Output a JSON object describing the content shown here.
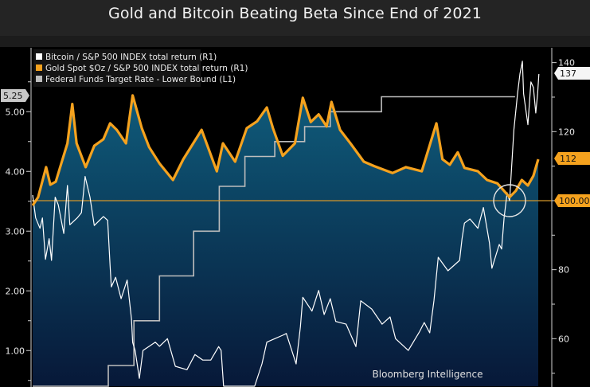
{
  "chart_data": {
    "type": "line",
    "title": "Gold and Bitcoin Beating Beta Since End of 2021",
    "source": "Bloomberg Intelligence",
    "legend_position": "top-left",
    "grid": false,
    "left_axis": {
      "name": "L1",
      "ylim": [
        0.39,
        6.07
      ],
      "ticks": [
        "1.00",
        "2.00",
        "3.00",
        "4.00",
        "5.00"
      ],
      "last_value_tag": "5.25"
    },
    "right_axis": {
      "name": "R1",
      "ylim": [
        46,
        144.3
      ],
      "ticks": [
        "60",
        "80",
        "120",
        "140"
      ],
      "reference_line": 100,
      "reference_tag": "100.00"
    },
    "colors": {
      "bitcoin": "#ffffff",
      "gold": "#f5a21e",
      "fed": "#bdbdbd",
      "fill_top": "#0f5d7c",
      "fill_bottom": "#071838",
      "reference": "#d4962a"
    },
    "series": [
      {
        "name": "Bitcoin / S&P 500 INDEX total return (R1)",
        "axis": "R1",
        "last_value_tag": "137",
        "points": [
          [
            "2022-01-01",
            101.6
          ],
          [
            "2022-01-06",
            95
          ],
          [
            "2022-01-13",
            92
          ],
          [
            "2022-01-17",
            95
          ],
          [
            "2022-01-22",
            83
          ],
          [
            "2022-01-28",
            89
          ],
          [
            "2022-02-01",
            82.7
          ],
          [
            "2022-02-07",
            101
          ],
          [
            "2022-02-12",
            98.8
          ],
          [
            "2022-02-21",
            90.5
          ],
          [
            "2022-02-27",
            104.4
          ],
          [
            "2022-03-03",
            93
          ],
          [
            "2022-03-15",
            95
          ],
          [
            "2022-03-22",
            96.5
          ],
          [
            "2022-03-28",
            107
          ],
          [
            "2022-04-05",
            101
          ],
          [
            "2022-04-12",
            92.8
          ],
          [
            "2022-04-27",
            95.4
          ],
          [
            "2022-05-04",
            94.3
          ],
          [
            "2022-05-08",
            81
          ],
          [
            "2022-05-10",
            75
          ],
          [
            "2022-05-17",
            77.8
          ],
          [
            "2022-05-26",
            71.6
          ],
          [
            "2022-06-05",
            77
          ],
          [
            "2022-06-12",
            65.8
          ],
          [
            "2022-06-14",
            58.9
          ],
          [
            "2022-06-18",
            56.6
          ],
          [
            "2022-06-25",
            48.5
          ],
          [
            "2022-07-01",
            56.6
          ],
          [
            "2022-07-21",
            59
          ],
          [
            "2022-07-28",
            57.8
          ],
          [
            "2022-08-10",
            60
          ],
          [
            "2022-08-23",
            52
          ],
          [
            "2022-09-11",
            51
          ],
          [
            "2022-09-24",
            55.4
          ],
          [
            "2022-10-07",
            53.8
          ],
          [
            "2022-10-20",
            53.8
          ],
          [
            "2022-11-02",
            57.7
          ],
          [
            "2022-11-06",
            56.6
          ],
          [
            "2022-11-10",
            46
          ],
          [
            "2022-12-05",
            43
          ],
          [
            "2022-12-31",
            42
          ],
          [
            "2023-01-12",
            52.7
          ],
          [
            "2023-01-20",
            59
          ],
          [
            "2023-02-02",
            60
          ],
          [
            "2023-02-15",
            61
          ],
          [
            "2023-02-21",
            61.5
          ],
          [
            "2023-03-09",
            52.7
          ],
          [
            "2023-03-16",
            63.5
          ],
          [
            "2023-03-20",
            72
          ],
          [
            "2023-04-04",
            68
          ],
          [
            "2023-04-15",
            74
          ],
          [
            "2023-04-24",
            67
          ],
          [
            "2023-05-04",
            71.6
          ],
          [
            "2023-05-13",
            65
          ],
          [
            "2023-05-30",
            64.2
          ],
          [
            "2023-06-15",
            57.7
          ],
          [
            "2023-06-23",
            71
          ],
          [
            "2023-07-11",
            68.6
          ],
          [
            "2023-07-28",
            64.2
          ],
          [
            "2023-08-10",
            66.3
          ],
          [
            "2023-08-19",
            60
          ],
          [
            "2023-09-09",
            56.6
          ],
          [
            "2023-09-27",
            61.9
          ],
          [
            "2023-10-05",
            64.7
          ],
          [
            "2023-10-14",
            61.7
          ],
          [
            "2023-10-21",
            71
          ],
          [
            "2023-10-28",
            83.6
          ],
          [
            "2023-11-13",
            79.7
          ],
          [
            "2023-12-02",
            82.7
          ],
          [
            "2023-12-06",
            89
          ],
          [
            "2023-12-10",
            93.5
          ],
          [
            "2023-12-19",
            94.7
          ],
          [
            "2024-01-01",
            92
          ],
          [
            "2024-01-10",
            98
          ],
          [
            "2024-01-20",
            87.8
          ],
          [
            "2024-01-24",
            80.4
          ],
          [
            "2024-02-05",
            87.3
          ],
          [
            "2024-02-09",
            86
          ],
          [
            "2024-02-13",
            95
          ],
          [
            "2024-02-18",
            102.3
          ],
          [
            "2024-02-22",
            100
          ],
          [
            "2024-02-29",
            120.5
          ],
          [
            "2024-03-06",
            131
          ],
          [
            "2024-03-10",
            136.7
          ],
          [
            "2024-03-14",
            140.4
          ],
          [
            "2024-03-16",
            131
          ],
          [
            "2024-03-23",
            122
          ],
          [
            "2024-03-28",
            134.4
          ],
          [
            "2024-04-01",
            132.8
          ],
          [
            "2024-04-05",
            125.4
          ],
          [
            "2024-04-08",
            131
          ],
          [
            "2024-04-10",
            136.7
          ]
        ]
      },
      {
        "name": "Gold Spot $Oz / S&P 500 INDEX total return (R1)",
        "axis": "R1",
        "last_value_tag": "112",
        "points": [
          [
            "2022-01-01",
            98.6
          ],
          [
            "2022-01-10",
            101
          ],
          [
            "2022-01-23",
            109.7
          ],
          [
            "2022-01-30",
            104.6
          ],
          [
            "2022-02-08",
            105.5
          ],
          [
            "2022-02-17",
            110.8
          ],
          [
            "2022-02-27",
            116.6
          ],
          [
            "2022-03-07",
            128
          ],
          [
            "2022-03-14",
            116.6
          ],
          [
            "2022-03-29",
            109.7
          ],
          [
            "2022-04-12",
            115.9
          ],
          [
            "2022-04-27",
            117.8
          ],
          [
            "2022-05-08",
            122.4
          ],
          [
            "2022-05-19",
            120.5
          ],
          [
            "2022-06-03",
            116.6
          ],
          [
            "2022-06-14",
            130.5
          ],
          [
            "2022-06-29",
            121
          ],
          [
            "2022-07-11",
            115.5
          ],
          [
            "2022-07-28",
            110.8
          ],
          [
            "2022-08-19",
            106
          ],
          [
            "2022-09-05",
            112
          ],
          [
            "2022-10-05",
            120.5
          ],
          [
            "2022-10-30",
            108.5
          ],
          [
            "2022-11-09",
            116.6
          ],
          [
            "2022-11-29",
            111.3
          ],
          [
            "2022-12-18",
            121
          ],
          [
            "2023-01-04",
            123
          ],
          [
            "2023-01-20",
            127
          ],
          [
            "2023-01-30",
            121
          ],
          [
            "2023-02-15",
            113
          ],
          [
            "2023-03-07",
            116.6
          ],
          [
            "2023-03-20",
            129.8
          ],
          [
            "2023-04-02",
            122.8
          ],
          [
            "2023-04-15",
            125
          ],
          [
            "2023-04-28",
            121.5
          ],
          [
            "2023-05-06",
            128.6
          ],
          [
            "2023-05-20",
            120.5
          ],
          [
            "2023-06-06",
            116.6
          ],
          [
            "2023-06-28",
            111.3
          ],
          [
            "2023-07-15",
            110
          ],
          [
            "2023-08-14",
            108
          ],
          [
            "2023-09-05",
            109.7
          ],
          [
            "2023-10-01",
            108.5
          ],
          [
            "2023-10-25",
            122.4
          ],
          [
            "2023-11-04",
            112
          ],
          [
            "2023-11-16",
            110.4
          ],
          [
            "2023-11-29",
            114
          ],
          [
            "2023-12-10",
            109.5
          ],
          [
            "2024-01-01",
            108.5
          ],
          [
            "2024-01-16",
            106
          ],
          [
            "2024-02-02",
            105
          ],
          [
            "2024-02-22",
            101
          ],
          [
            "2024-03-03",
            102.8
          ],
          [
            "2024-03-13",
            106
          ],
          [
            "2024-03-23",
            104.4
          ],
          [
            "2024-04-01",
            107.2
          ],
          [
            "2024-04-09",
            112
          ]
        ]
      },
      {
        "name": "Federal Funds Target Rate - Lower Bound  (L1)",
        "axis": "L1",
        "step": true,
        "points": [
          [
            "2022-01-01",
            0.0
          ],
          [
            "2022-03-17",
            0.25
          ],
          [
            "2022-05-05",
            0.75
          ],
          [
            "2022-06-16",
            1.5
          ],
          [
            "2022-07-28",
            2.25
          ],
          [
            "2022-09-22",
            3.0
          ],
          [
            "2022-11-03",
            3.75
          ],
          [
            "2022-12-15",
            4.25
          ],
          [
            "2023-02-02",
            4.5
          ],
          [
            "2023-03-23",
            4.75
          ],
          [
            "2023-05-04",
            5.0
          ],
          [
            "2023-07-27",
            5.25
          ],
          [
            "2024-03-02",
            5.25
          ]
        ]
      }
    ]
  }
}
